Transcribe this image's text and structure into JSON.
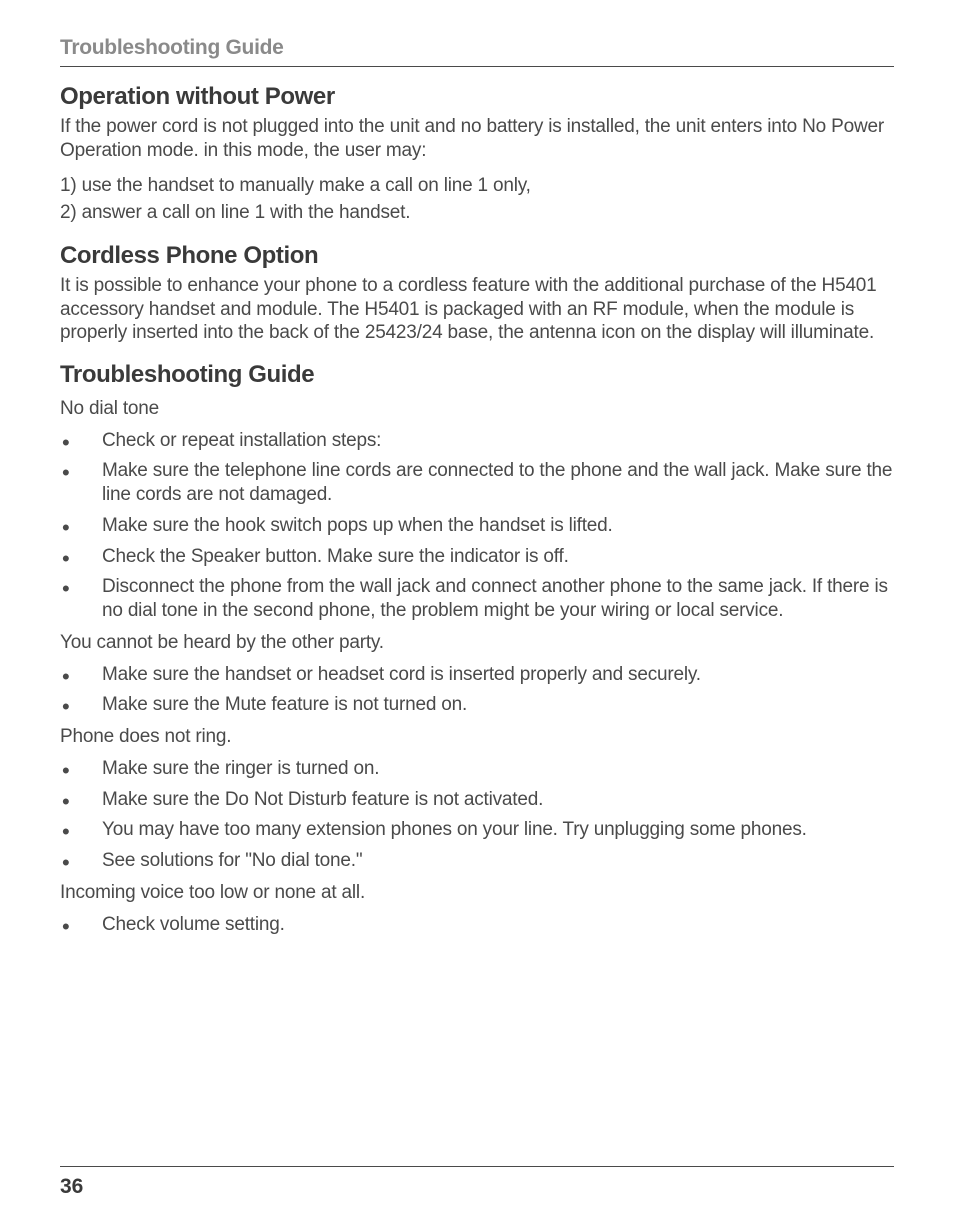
{
  "runningHead": "Troubleshooting Guide",
  "sections": {
    "op": {
      "title": "Operation without Power",
      "intro": "If the power cord is not plugged into the unit and no battery is installed, the unit enters into No Power Operation mode. in this mode, the user may:",
      "items": [
        "1)   use the handset to manually make a call on line 1 only,",
        "2)   answer a call on line 1 with the handset."
      ]
    },
    "cordless": {
      "title": "Cordless Phone Option",
      "body": "It is possible to enhance your phone to a cordless feature with the additional purchase of the H5401 accessory handset and module. The H5401 is packaged with an RF module, when the module is properly inserted into the back of the 25423/24 base, the antenna icon on the display will illuminate."
    },
    "trouble": {
      "title": "Troubleshooting Guide",
      "noDialLabel": "No dial tone",
      "noDialItems": [
        "Check or repeat installation steps:",
        "Make sure the telephone line cords are connected to the phone and the wall jack. Make sure the line cords are not damaged.",
        "Make sure the hook switch pops up when the handset is lifted.",
        "Check the Speaker button. Make sure the indicator is off.",
        "Disconnect the phone from the wall jack and connect another phone to the same jack. If there is no dial tone in the second phone, the problem might be your wiring or local service."
      ],
      "cannotHearLabel": "You cannot be heard by the other party.",
      "cannotHearItems": [
        "Make sure the handset or headset cord is inserted properly and securely.",
        "Make sure the Mute feature is not turned on."
      ],
      "noRingLabel": "Phone does not ring.",
      "noRingItems": [
        "Make sure the ringer is turned on.",
        "Make sure the Do Not Disturb feature is not activated.",
        "You may have too many extension phones on your line. Try unplugging some phones.",
        "See solutions for \"No dial tone.\""
      ],
      "lowVoiceLabel": "Incoming voice too low or none at all.",
      "lowVoiceItems": [
        "Check  volume setting."
      ]
    }
  },
  "pageNumber": "36"
}
